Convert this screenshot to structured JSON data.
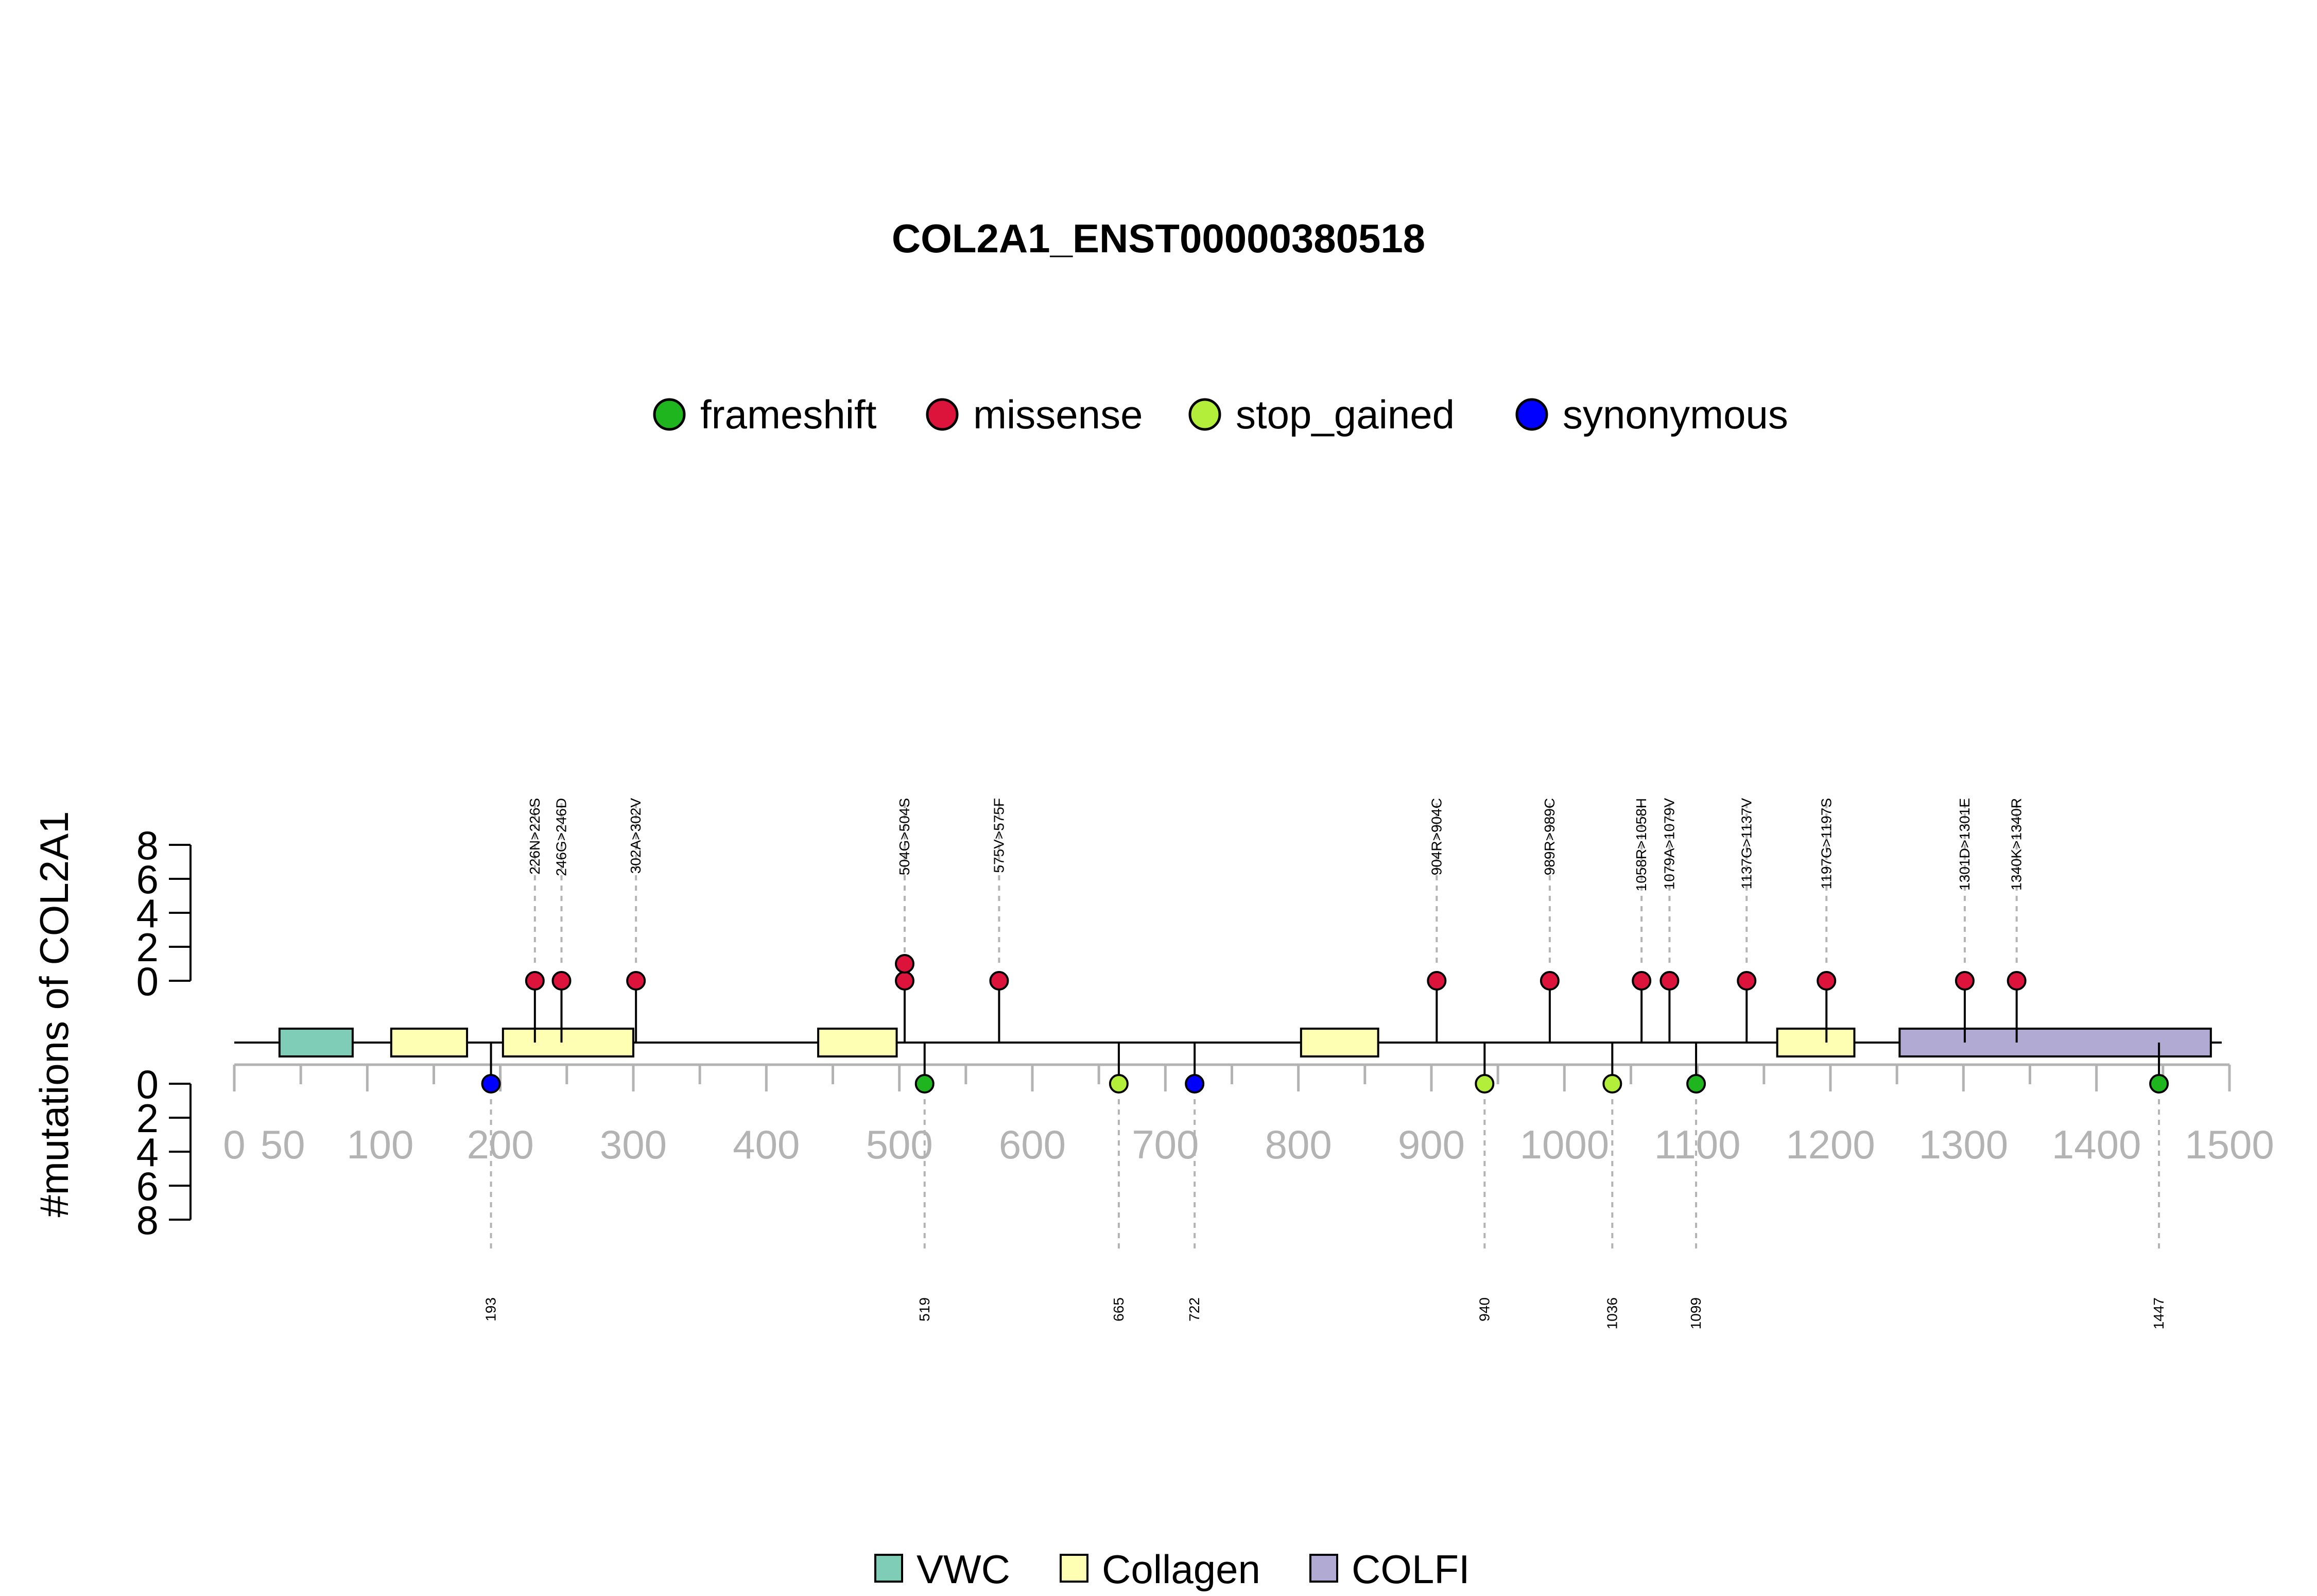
{
  "chart_data": {
    "type": "lollipop",
    "title": "COL2A1_ENST00000380518",
    "ylabel": "#mutations of COL2A1",
    "xlim": [
      0,
      1500
    ],
    "x_ticks": [
      0,
      50,
      100,
      200,
      300,
      400,
      500,
      600,
      700,
      800,
      900,
      1000,
      1100,
      1200,
      1300,
      1400,
      1500
    ],
    "y_ticks": [
      0,
      2,
      4,
      6,
      8
    ],
    "ylim": [
      0,
      8
    ],
    "mutation_legend": [
      {
        "name": "frameshift",
        "color": "#1eb51e"
      },
      {
        "name": "missense",
        "color": "#dc143c"
      },
      {
        "name": "stop_gained",
        "color": "#b3ee3a"
      },
      {
        "name": "synonymous",
        "color": "#0000ff"
      }
    ],
    "domain_legend": [
      {
        "name": "VWC",
        "color": "#7fccb7"
      },
      {
        "name": "Collagen",
        "color": "#ffffb3"
      },
      {
        "name": "COLFI",
        "color": "#b1aad2"
      }
    ],
    "domains": [
      {
        "name": "VWC",
        "start": 34,
        "end": 89
      },
      {
        "name": "Collagen",
        "start": 118,
        "end": 175
      },
      {
        "name": "Collagen",
        "start": 202,
        "end": 300
      },
      {
        "name": "Collagen",
        "start": 439,
        "end": 498
      },
      {
        "name": "Collagen",
        "start": 802,
        "end": 860
      },
      {
        "name": "Collagen",
        "start": 1160,
        "end": 1218
      },
      {
        "name": "COLFI",
        "start": 1252,
        "end": 1486
      }
    ],
    "upper_mutations": [
      {
        "pos": 226,
        "label": "226N>226S",
        "type": "missense",
        "count": 1
      },
      {
        "pos": 246,
        "label": "246G>246D",
        "type": "missense",
        "count": 1
      },
      {
        "pos": 302,
        "label": "302A>302V",
        "type": "missense",
        "count": 1
      },
      {
        "pos": 504,
        "label": "504G>504S",
        "type": "missense",
        "count": 2
      },
      {
        "pos": 575,
        "label": "575V>575F",
        "type": "missense",
        "count": 1
      },
      {
        "pos": 904,
        "label": "904R>904C",
        "type": "missense",
        "count": 1
      },
      {
        "pos": 989,
        "label": "989R>989C",
        "type": "missense",
        "count": 1
      },
      {
        "pos": 1058,
        "label": "1058R>1058H",
        "type": "missense",
        "count": 1
      },
      {
        "pos": 1079,
        "label": "1079A>1079V",
        "type": "missense",
        "count": 1
      },
      {
        "pos": 1137,
        "label": "1137G>1137V",
        "type": "missense",
        "count": 1
      },
      {
        "pos": 1197,
        "label": "1197G>1197S",
        "type": "missense",
        "count": 1
      },
      {
        "pos": 1301,
        "label": "1301D>1301E",
        "type": "missense",
        "count": 1
      },
      {
        "pos": 1340,
        "label": "1340K>1340R",
        "type": "missense",
        "count": 1
      }
    ],
    "lower_mutations": [
      {
        "pos": 193,
        "label": "193",
        "type": "synonymous",
        "count": 1
      },
      {
        "pos": 519,
        "label": "519",
        "type": "frameshift",
        "count": 1
      },
      {
        "pos": 665,
        "label": "665",
        "type": "stop_gained",
        "count": 1
      },
      {
        "pos": 722,
        "label": "722",
        "type": "synonymous",
        "count": 1
      },
      {
        "pos": 940,
        "label": "940",
        "type": "stop_gained",
        "count": 1
      },
      {
        "pos": 1036,
        "label": "1036",
        "type": "stop_gained",
        "count": 1
      },
      {
        "pos": 1099,
        "label": "1099",
        "type": "frameshift",
        "count": 1
      },
      {
        "pos": 1447,
        "label": "1447",
        "type": "frameshift",
        "count": 1
      }
    ]
  }
}
